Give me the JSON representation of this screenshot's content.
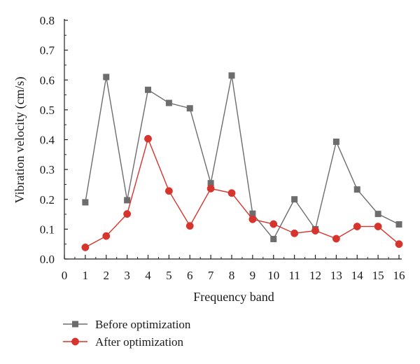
{
  "chart_data": {
    "type": "line",
    "xlabel": "Frequency band",
    "ylabel": "Vibration velocity (cm/s)",
    "xlim": [
      0,
      16
    ],
    "ylim": [
      0,
      0.8
    ],
    "x_ticks": [
      "0",
      "1",
      "2",
      "3",
      "4",
      "5",
      "6",
      "7",
      "8",
      "9",
      "10",
      "11",
      "12",
      "13",
      "14",
      "15",
      "16"
    ],
    "y_ticks": [
      "0.0",
      "0.1",
      "0.2",
      "0.3",
      "0.4",
      "0.5",
      "0.6",
      "0.7",
      "0.8"
    ],
    "x": [
      1,
      2,
      3,
      4,
      5,
      6,
      7,
      8,
      9,
      10,
      11,
      12,
      13,
      14,
      15,
      16
    ],
    "grid": false,
    "legend_position": "bottom",
    "series": [
      {
        "name": "Before optimization",
        "marker": "square",
        "color": "#6d6d6d",
        "values": [
          0.19,
          0.61,
          0.197,
          0.567,
          0.523,
          0.505,
          0.254,
          0.615,
          0.152,
          0.067,
          0.2,
          0.1,
          0.393,
          0.233,
          0.151,
          0.116
        ]
      },
      {
        "name": "After optimization",
        "marker": "circle",
        "color": "#d6342c",
        "values": [
          0.039,
          0.077,
          0.151,
          0.403,
          0.228,
          0.111,
          0.236,
          0.221,
          0.133,
          0.117,
          0.086,
          0.095,
          0.068,
          0.109,
          0.109,
          0.05
        ]
      }
    ]
  }
}
